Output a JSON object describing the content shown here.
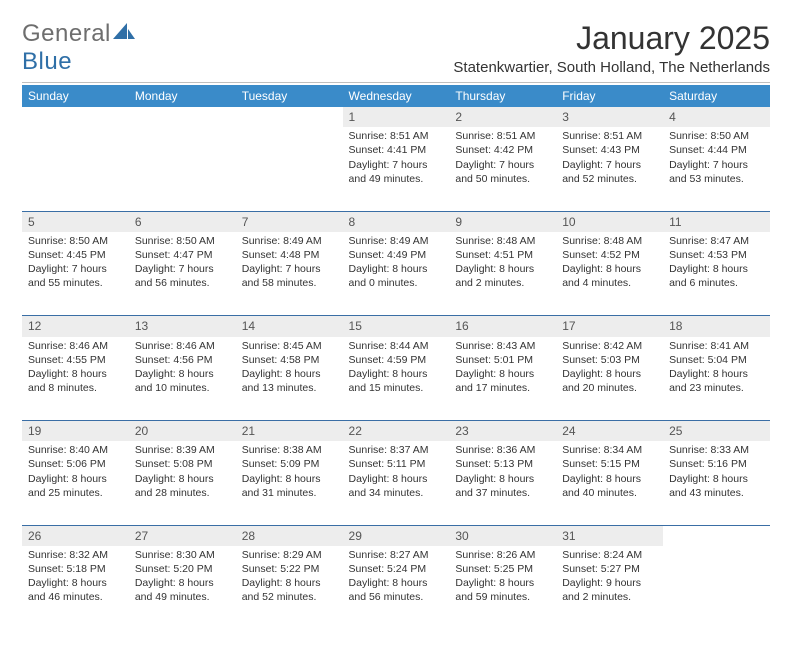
{
  "logo": {
    "word1": "General",
    "word2": "Blue"
  },
  "title": "January 2025",
  "location": "Statenkwartier, South Holland, The Netherlands",
  "colors": {
    "header_bg": "#3a8bc9",
    "header_text": "#ffffff",
    "daynum_bg": "#ededed",
    "daynum_text": "#555555",
    "row_border": "#3a6ea5",
    "body_text": "#333333",
    "logo_gray": "#6e6e6e",
    "logo_blue": "#2f6fa7",
    "page_bg": "#ffffff"
  },
  "columns": [
    "Sunday",
    "Monday",
    "Tuesday",
    "Wednesday",
    "Thursday",
    "Friday",
    "Saturday"
  ],
  "weeks": [
    [
      null,
      null,
      null,
      {
        "n": "1",
        "sr": "8:51 AM",
        "ss": "4:41 PM",
        "dh": 7,
        "dm": 49
      },
      {
        "n": "2",
        "sr": "8:51 AM",
        "ss": "4:42 PM",
        "dh": 7,
        "dm": 50
      },
      {
        "n": "3",
        "sr": "8:51 AM",
        "ss": "4:43 PM",
        "dh": 7,
        "dm": 52
      },
      {
        "n": "4",
        "sr": "8:50 AM",
        "ss": "4:44 PM",
        "dh": 7,
        "dm": 53
      }
    ],
    [
      {
        "n": "5",
        "sr": "8:50 AM",
        "ss": "4:45 PM",
        "dh": 7,
        "dm": 55
      },
      {
        "n": "6",
        "sr": "8:50 AM",
        "ss": "4:47 PM",
        "dh": 7,
        "dm": 56
      },
      {
        "n": "7",
        "sr": "8:49 AM",
        "ss": "4:48 PM",
        "dh": 7,
        "dm": 58
      },
      {
        "n": "8",
        "sr": "8:49 AM",
        "ss": "4:49 PM",
        "dh": 8,
        "dm": 0
      },
      {
        "n": "9",
        "sr": "8:48 AM",
        "ss": "4:51 PM",
        "dh": 8,
        "dm": 2
      },
      {
        "n": "10",
        "sr": "8:48 AM",
        "ss": "4:52 PM",
        "dh": 8,
        "dm": 4
      },
      {
        "n": "11",
        "sr": "8:47 AM",
        "ss": "4:53 PM",
        "dh": 8,
        "dm": 6
      }
    ],
    [
      {
        "n": "12",
        "sr": "8:46 AM",
        "ss": "4:55 PM",
        "dh": 8,
        "dm": 8
      },
      {
        "n": "13",
        "sr": "8:46 AM",
        "ss": "4:56 PM",
        "dh": 8,
        "dm": 10
      },
      {
        "n": "14",
        "sr": "8:45 AM",
        "ss": "4:58 PM",
        "dh": 8,
        "dm": 13
      },
      {
        "n": "15",
        "sr": "8:44 AM",
        "ss": "4:59 PM",
        "dh": 8,
        "dm": 15
      },
      {
        "n": "16",
        "sr": "8:43 AM",
        "ss": "5:01 PM",
        "dh": 8,
        "dm": 17
      },
      {
        "n": "17",
        "sr": "8:42 AM",
        "ss": "5:03 PM",
        "dh": 8,
        "dm": 20
      },
      {
        "n": "18",
        "sr": "8:41 AM",
        "ss": "5:04 PM",
        "dh": 8,
        "dm": 23
      }
    ],
    [
      {
        "n": "19",
        "sr": "8:40 AM",
        "ss": "5:06 PM",
        "dh": 8,
        "dm": 25
      },
      {
        "n": "20",
        "sr": "8:39 AM",
        "ss": "5:08 PM",
        "dh": 8,
        "dm": 28
      },
      {
        "n": "21",
        "sr": "8:38 AM",
        "ss": "5:09 PM",
        "dh": 8,
        "dm": 31
      },
      {
        "n": "22",
        "sr": "8:37 AM",
        "ss": "5:11 PM",
        "dh": 8,
        "dm": 34
      },
      {
        "n": "23",
        "sr": "8:36 AM",
        "ss": "5:13 PM",
        "dh": 8,
        "dm": 37
      },
      {
        "n": "24",
        "sr": "8:34 AM",
        "ss": "5:15 PM",
        "dh": 8,
        "dm": 40
      },
      {
        "n": "25",
        "sr": "8:33 AM",
        "ss": "5:16 PM",
        "dh": 8,
        "dm": 43
      }
    ],
    [
      {
        "n": "26",
        "sr": "8:32 AM",
        "ss": "5:18 PM",
        "dh": 8,
        "dm": 46
      },
      {
        "n": "27",
        "sr": "8:30 AM",
        "ss": "5:20 PM",
        "dh": 8,
        "dm": 49
      },
      {
        "n": "28",
        "sr": "8:29 AM",
        "ss": "5:22 PM",
        "dh": 8,
        "dm": 52
      },
      {
        "n": "29",
        "sr": "8:27 AM",
        "ss": "5:24 PM",
        "dh": 8,
        "dm": 56
      },
      {
        "n": "30",
        "sr": "8:26 AM",
        "ss": "5:25 PM",
        "dh": 8,
        "dm": 59
      },
      {
        "n": "31",
        "sr": "8:24 AM",
        "ss": "5:27 PM",
        "dh": 9,
        "dm": 2
      },
      null
    ]
  ],
  "labels": {
    "sunrise": "Sunrise:",
    "sunset": "Sunset:",
    "daylight": "Daylight:",
    "hours": "hours",
    "and": "and",
    "minutes": "minutes."
  }
}
